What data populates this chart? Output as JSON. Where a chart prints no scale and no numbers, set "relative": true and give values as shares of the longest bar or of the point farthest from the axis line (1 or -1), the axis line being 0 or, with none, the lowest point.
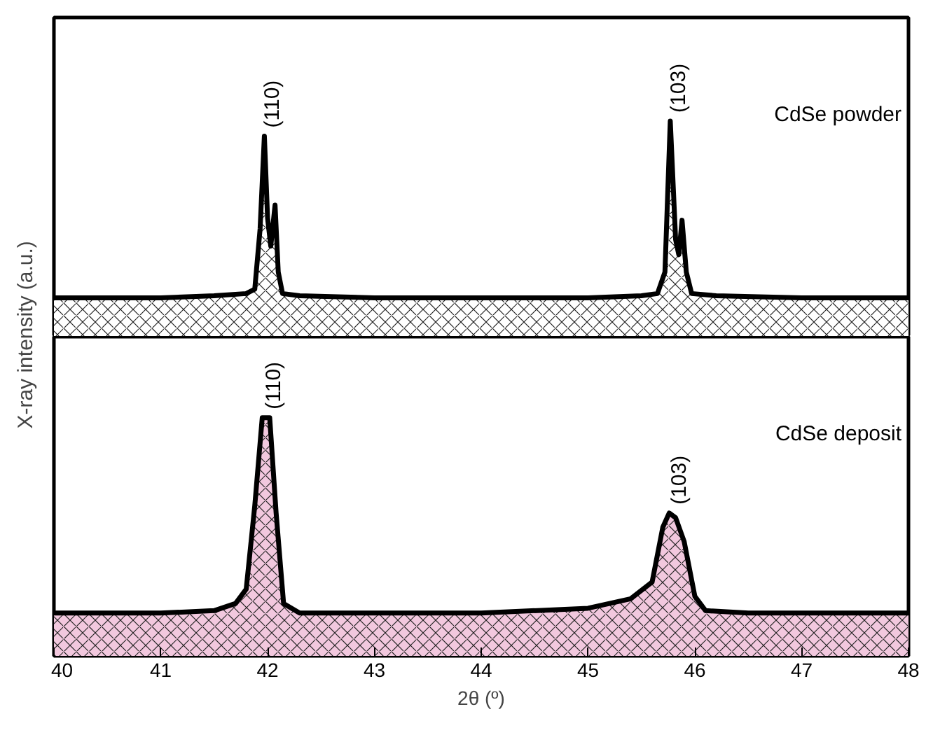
{
  "chart_data": [
    {
      "type": "area",
      "relative": true,
      "ylabel": "X-ray intensity (a.u.)",
      "xlim": [
        40,
        48
      ],
      "tick_labels": false,
      "grid": false,
      "x": [
        40,
        41,
        41.5,
        41.8,
        41.88,
        41.93,
        41.97,
        42.0,
        42.03,
        42.07,
        42.1,
        42.14,
        42.3,
        43,
        44,
        45,
        45.5,
        45.65,
        45.72,
        45.77,
        45.82,
        45.85,
        45.88,
        45.92,
        45.97,
        46.2,
        47,
        48
      ],
      "series": [
        {
          "color": "#ffffff",
          "values": [
            0.18,
            0.18,
            0.19,
            0.2,
            0.22,
            0.5,
            0.93,
            0.55,
            0.42,
            0.61,
            0.3,
            0.2,
            0.19,
            0.18,
            0.18,
            0.18,
            0.19,
            0.2,
            0.3,
            1.0,
            0.45,
            0.38,
            0.54,
            0.3,
            0.2,
            0.19,
            0.18,
            0.18
          ]
        }
      ],
      "annotations": [
        {
          "text": "(110)",
          "x": 41.97,
          "y": 0.93
        },
        {
          "text": "(103)",
          "x": 45.77,
          "y": 1.0
        },
        "CdSe powder"
      ]
    },
    {
      "type": "area",
      "relative": true,
      "xlabel": "2θ (º)",
      "xlim": [
        40,
        48
      ],
      "xticks": [
        40,
        41,
        42,
        43,
        44,
        45,
        46,
        47,
        48
      ],
      "tick_labels": "x",
      "grid": false,
      "x": [
        40,
        41,
        41.5,
        41.7,
        41.8,
        41.88,
        41.95,
        42.02,
        42.08,
        42.15,
        42.3,
        43,
        44,
        45,
        45.4,
        45.6,
        45.7,
        45.76,
        45.82,
        45.9,
        46.0,
        46.1,
        46.5,
        47,
        48
      ],
      "series": [
        {
          "color": "#f2c8de",
          "values": [
            0.18,
            0.18,
            0.19,
            0.22,
            0.28,
            0.63,
            1.0,
            1.0,
            0.6,
            0.22,
            0.18,
            0.18,
            0.18,
            0.2,
            0.24,
            0.31,
            0.54,
            0.6,
            0.58,
            0.48,
            0.25,
            0.19,
            0.18,
            0.18,
            0.18
          ]
        }
      ],
      "annotations": [
        {
          "text": "(110)",
          "x": 41.98,
          "y": 1.0
        },
        {
          "text": "(103)",
          "x": 45.78,
          "y": 0.6
        },
        "CdSe deposit"
      ]
    }
  ]
}
